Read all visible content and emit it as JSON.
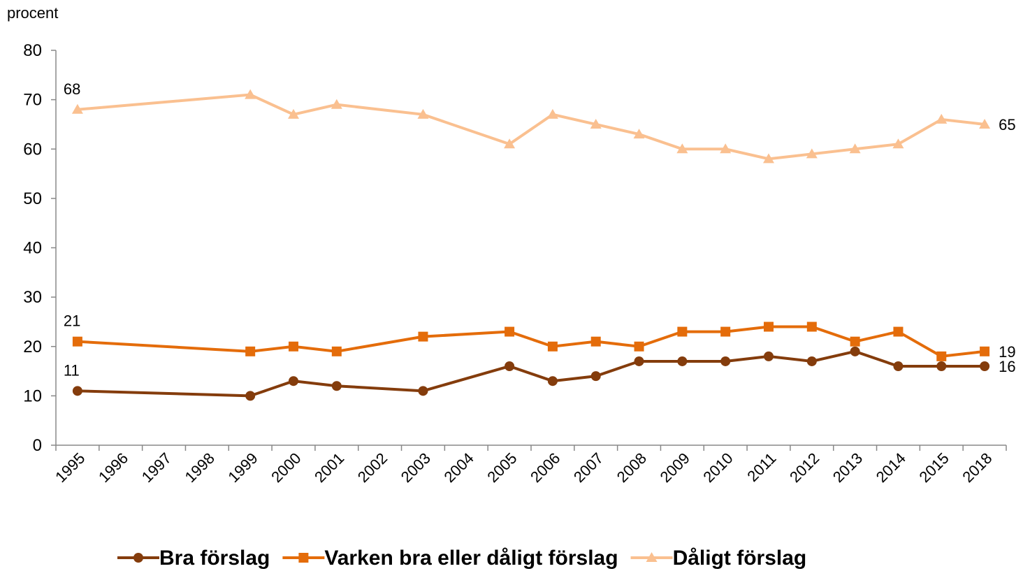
{
  "chart_data": {
    "type": "line",
    "y_label": "procent",
    "categories": [
      "1995",
      "1996",
      "1997",
      "1998",
      "1999",
      "2000",
      "2001",
      "2002",
      "2003",
      "2004",
      "2005",
      "2006",
      "2007",
      "2008",
      "2009",
      "2010",
      "2011",
      "2012",
      "2013",
      "2014",
      "2015",
      "2018"
    ],
    "span_gaps": true,
    "series": [
      {
        "name": "Bra förslag",
        "color": "#843c0c",
        "marker": "circle",
        "values": [
          11,
          null,
          null,
          null,
          10,
          13,
          12,
          null,
          11,
          null,
          16,
          13,
          14,
          17,
          17,
          17,
          18,
          17,
          19,
          16,
          16,
          16
        ]
      },
      {
        "name": "Varken bra eller dåligt förslag",
        "color": "#e46c0a",
        "marker": "square",
        "values": [
          21,
          null,
          null,
          null,
          19,
          20,
          19,
          null,
          22,
          null,
          23,
          20,
          21,
          20,
          23,
          23,
          24,
          24,
          21,
          23,
          18,
          19
        ]
      },
      {
        "name": "Dåligt förslag",
        "color": "#fac090",
        "marker": "triangle",
        "values": [
          68,
          null,
          null,
          null,
          71,
          67,
          69,
          null,
          67,
          null,
          61,
          67,
          65,
          63,
          60,
          60,
          58,
          59,
          60,
          61,
          66,
          65
        ]
      }
    ],
    "ylim": [
      0,
      80
    ],
    "yticks": [
      0,
      10,
      20,
      30,
      40,
      50,
      60,
      70,
      80
    ],
    "grid": false,
    "legend_position": "bottom"
  }
}
